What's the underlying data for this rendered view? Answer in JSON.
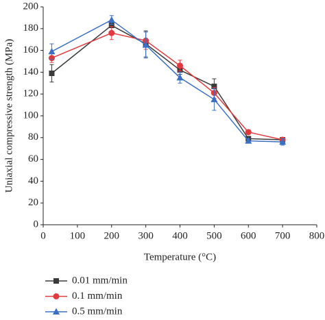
{
  "chart_data": {
    "type": "line",
    "xlabel": "Temperature (°C)",
    "ylabel": "Uniaxial compressive strength (MPa)",
    "x": [
      25,
      200,
      300,
      400,
      500,
      600,
      700
    ],
    "series": [
      {
        "name": "0.01 mm/min",
        "color": "#3a3a3a",
        "marker": "square",
        "values": [
          139,
          183,
          166,
          142,
          127,
          79,
          78
        ],
        "errors": [
          8,
          2,
          12,
          4,
          7,
          2,
          2
        ]
      },
      {
        "name": "0.1 mm/min",
        "color": "#e03a3e",
        "marker": "circle",
        "values": [
          153,
          176,
          169,
          146,
          121,
          85,
          78
        ],
        "errors": [
          4,
          6,
          8,
          5,
          5,
          2,
          2
        ]
      },
      {
        "name": "0.5 mm/min",
        "color": "#3a6fc4",
        "marker": "triangle",
        "values": [
          159,
          188,
          165,
          135,
          115,
          77,
          76
        ],
        "errors": [
          7,
          4,
          12,
          5,
          10,
          2,
          3
        ]
      }
    ],
    "xlim": [
      0,
      800
    ],
    "xticks": [
      0,
      100,
      200,
      300,
      400,
      500,
      600,
      700,
      800
    ],
    "ylim": [
      0,
      200
    ],
    "yticks": [
      0,
      20,
      40,
      60,
      80,
      100,
      120,
      140,
      160,
      180,
      200
    ]
  }
}
